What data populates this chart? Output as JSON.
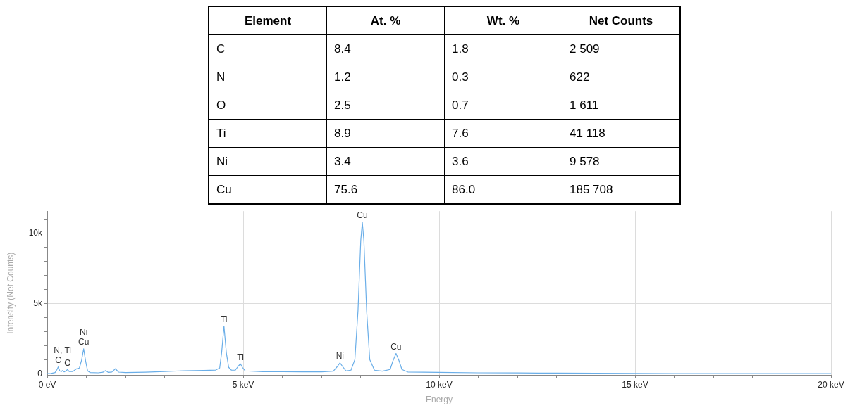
{
  "chart_data": [
    {
      "type": "other",
      "xlabel": "Element",
      "categories": [
        "C",
        "N",
        "O",
        "Ti",
        "Ni",
        "Cu"
      ],
      "data_labels": true,
      "series": [
        {
          "name": "At. %",
          "values": [
            8.4,
            1.2,
            2.5,
            8.9,
            3.4,
            75.6
          ]
        },
        {
          "name": "Wt. %",
          "values": [
            1.8,
            0.3,
            0.7,
            7.6,
            3.6,
            86.0
          ],
          "value_labels": [
            "1.8",
            "0.3",
            "0.7",
            "7.6",
            "3.6",
            "86.0"
          ]
        },
        {
          "name": "Net Counts",
          "values": [
            2509,
            622,
            1611,
            41118,
            9578,
            185708
          ]
        }
      ]
    },
    {
      "type": "line",
      "xlabel": "Energy",
      "ylabel": "Intensity (Net Counts)",
      "grid": true,
      "legend": false,
      "marker": "none",
      "line_style": "solid",
      "xlim": [
        0,
        20
      ],
      "ylim": [
        -100,
        11600
      ],
      "xticks": [
        {
          "value": 0,
          "label": "0 eV"
        },
        {
          "value": 1,
          "label": null
        },
        {
          "value": 2,
          "label": null
        },
        {
          "value": 3,
          "label": null
        },
        {
          "value": 4,
          "label": null
        },
        {
          "value": 5,
          "label": "5 keV"
        },
        {
          "value": 6,
          "label": null
        },
        {
          "value": 7,
          "label": null
        },
        {
          "value": 8,
          "label": null
        },
        {
          "value": 9,
          "label": null
        },
        {
          "value": 10,
          "label": "10 keV"
        },
        {
          "value": 11,
          "label": null
        },
        {
          "value": 12,
          "label": null
        },
        {
          "value": 13,
          "label": null
        },
        {
          "value": 14,
          "label": null
        },
        {
          "value": 15,
          "label": "15 keV"
        },
        {
          "value": 16,
          "label": null
        },
        {
          "value": 17,
          "label": null
        },
        {
          "value": 18,
          "label": null
        },
        {
          "value": 19,
          "label": null
        },
        {
          "value": 20,
          "label": "20 keV"
        }
      ],
      "yticks": [
        {
          "value": 0,
          "label": "0"
        },
        {
          "value": 1000,
          "label": null
        },
        {
          "value": 2000,
          "label": null
        },
        {
          "value": 3000,
          "label": null
        },
        {
          "value": 4000,
          "label": null
        },
        {
          "value": 5000,
          "label": "5k"
        },
        {
          "value": 6000,
          "label": null
        },
        {
          "value": 7000,
          "label": null
        },
        {
          "value": 8000,
          "label": null
        },
        {
          "value": 9000,
          "label": null
        },
        {
          "value": 10000,
          "label": "10k"
        },
        {
          "value": 11000,
          "label": null
        }
      ],
      "x": [
        0,
        0.1,
        0.2,
        0.25,
        0.28,
        0.32,
        0.36,
        0.39,
        0.43,
        0.48,
        0.52,
        0.56,
        0.65,
        0.75,
        0.82,
        0.88,
        0.93,
        0.98,
        1.03,
        1.1,
        1.3,
        1.42,
        1.49,
        1.56,
        1.65,
        1.74,
        1.82,
        2.0,
        2.5,
        3.0,
        3.5,
        4.0,
        4.3,
        4.4,
        4.45,
        4.51,
        4.57,
        4.63,
        4.7,
        4.8,
        4.88,
        4.93,
        4.98,
        5.05,
        5.5,
        6.0,
        6.5,
        7.0,
        7.3,
        7.4,
        7.47,
        7.54,
        7.62,
        7.75,
        7.85,
        7.93,
        8.0,
        8.04,
        8.08,
        8.15,
        8.23,
        8.35,
        8.55,
        8.75,
        8.82,
        8.9,
        8.98,
        9.05,
        9.2,
        10,
        11,
        12,
        13,
        14,
        15,
        16,
        17,
        18,
        19,
        20
      ],
      "series": [
        {
          "color": "#6aaee8",
          "values": [
            0,
            20,
            80,
            300,
            480,
            200,
            150,
            220,
            130,
            200,
            300,
            150,
            150,
            350,
            400,
            1000,
            1780,
            900,
            200,
            80,
            60,
            100,
            220,
            90,
            120,
            350,
            110,
            80,
            100,
            150,
            210,
            230,
            260,
            400,
            1500,
            3400,
            1500,
            450,
            250,
            260,
            550,
            700,
            450,
            200,
            140,
            140,
            130,
            130,
            180,
            500,
            770,
            500,
            200,
            250,
            1000,
            4500,
            9500,
            10800,
            9500,
            4500,
            1000,
            250,
            180,
            300,
            900,
            1440,
            900,
            300,
            120,
            90,
            60,
            50,
            40,
            30,
            20,
            0,
            0,
            0,
            0,
            0
          ]
        }
      ],
      "annotations": [
        {
          "text": "C",
          "x": 0.28,
          "y": 480
        },
        {
          "text": "O",
          "x": 0.52,
          "y": 300
        },
        {
          "text": "N, Ti",
          "x": 0.39,
          "y": 220
        },
        {
          "text": "Cu",
          "x": 0.93,
          "y": 1780
        },
        {
          "text": "Ni",
          "x": 0.93,
          "y": 1780
        },
        {
          "text": "Ti",
          "x": 4.51,
          "y": 3400
        },
        {
          "text": "Ti",
          "x": 4.93,
          "y": 700
        },
        {
          "text": "Ni",
          "x": 7.47,
          "y": 770
        },
        {
          "text": "Cu",
          "x": 8.04,
          "y": 10800
        },
        {
          "text": "Cu",
          "x": 8.9,
          "y": 1440
        }
      ]
    }
  ]
}
